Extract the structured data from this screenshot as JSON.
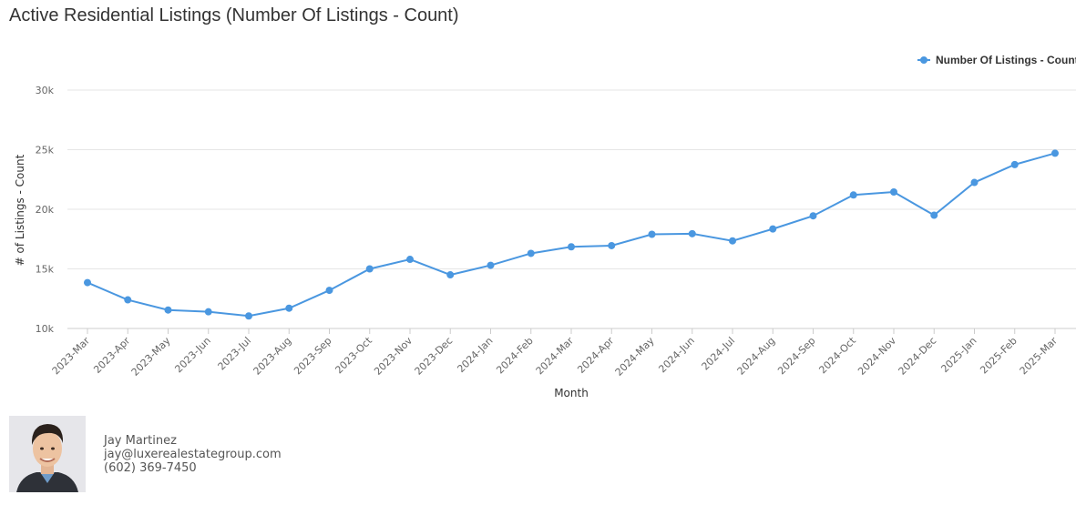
{
  "title": "Active Residential Listings (Number Of Listings - Count)",
  "chart_data": {
    "type": "line",
    "title": "Active Residential Listings (Number Of Listings - Count)",
    "xlabel": "Month",
    "ylabel": "# of Listings - Count",
    "ylim": [
      10000,
      30000
    ],
    "yticks": [
      10000,
      15000,
      20000,
      25000,
      30000
    ],
    "ytick_labels": [
      "10k",
      "15k",
      "20k",
      "25k",
      "30k"
    ],
    "grid": true,
    "legend_position": "top-right",
    "categories": [
      "2023-Mar",
      "2023-Apr",
      "2023-May",
      "2023-Jun",
      "2023-Jul",
      "2023-Aug",
      "2023-Sep",
      "2023-Oct",
      "2023-Nov",
      "2023-Dec",
      "2024-Jan",
      "2024-Feb",
      "2024-Mar",
      "2024-Apr",
      "2024-May",
      "2024-Jun",
      "2024-Jul",
      "2024-Aug",
      "2024-Sep",
      "2024-Oct",
      "2024-Nov",
      "2024-Dec",
      "2025-Jan",
      "2025-Feb",
      "2025-Mar"
    ],
    "series": [
      {
        "name": "Number Of Listings - Count",
        "color": "#4a97e0",
        "values": [
          13850,
          12400,
          11550,
          11400,
          11050,
          11700,
          13200,
          15000,
          15800,
          14500,
          15300,
          16300,
          16850,
          16950,
          17900,
          17950,
          17350,
          18350,
          19450,
          21200,
          21450,
          19500,
          22250,
          23750,
          24700
        ]
      }
    ]
  },
  "agent": {
    "name": "Jay Martinez",
    "email": "jay@luxerealestategroup.com",
    "phone": "(602) 369-7450"
  }
}
